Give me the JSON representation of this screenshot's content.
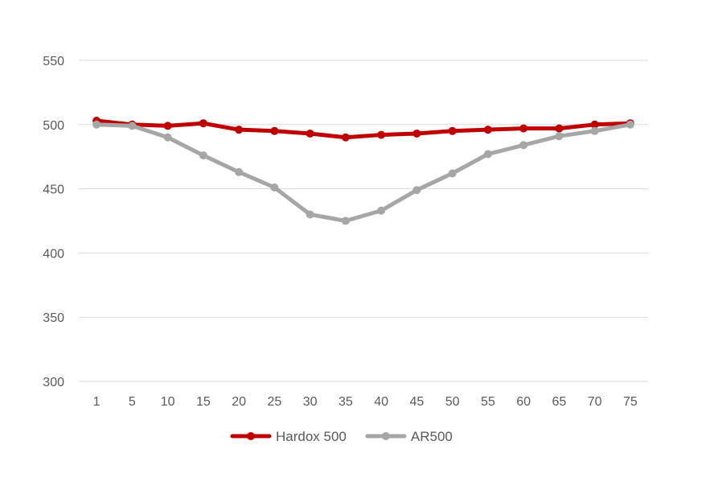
{
  "chart_data": {
    "type": "line",
    "title": "",
    "xlabel": "",
    "ylabel": "",
    "categories": [
      "1",
      "5",
      "10",
      "15",
      "20",
      "25",
      "30",
      "35",
      "40",
      "45",
      "50",
      "55",
      "60",
      "65",
      "70",
      "75"
    ],
    "ylim": [
      300,
      550
    ],
    "yticks": [
      300,
      350,
      400,
      450,
      500,
      550
    ],
    "grid": true,
    "legend_position": "bottom",
    "series": [
      {
        "name": "Hardox 500",
        "color": "#C00000",
        "values": [
          503,
          500,
          499,
          501,
          496,
          495,
          493,
          490,
          492,
          493,
          495,
          496,
          497,
          497,
          500,
          501
        ]
      },
      {
        "name": "AR500",
        "color": "#A6A6A6",
        "values": [
          500,
          499,
          490,
          476,
          463,
          451,
          430,
          425,
          433,
          449,
          462,
          477,
          484,
          491,
          495,
          500
        ]
      }
    ]
  }
}
